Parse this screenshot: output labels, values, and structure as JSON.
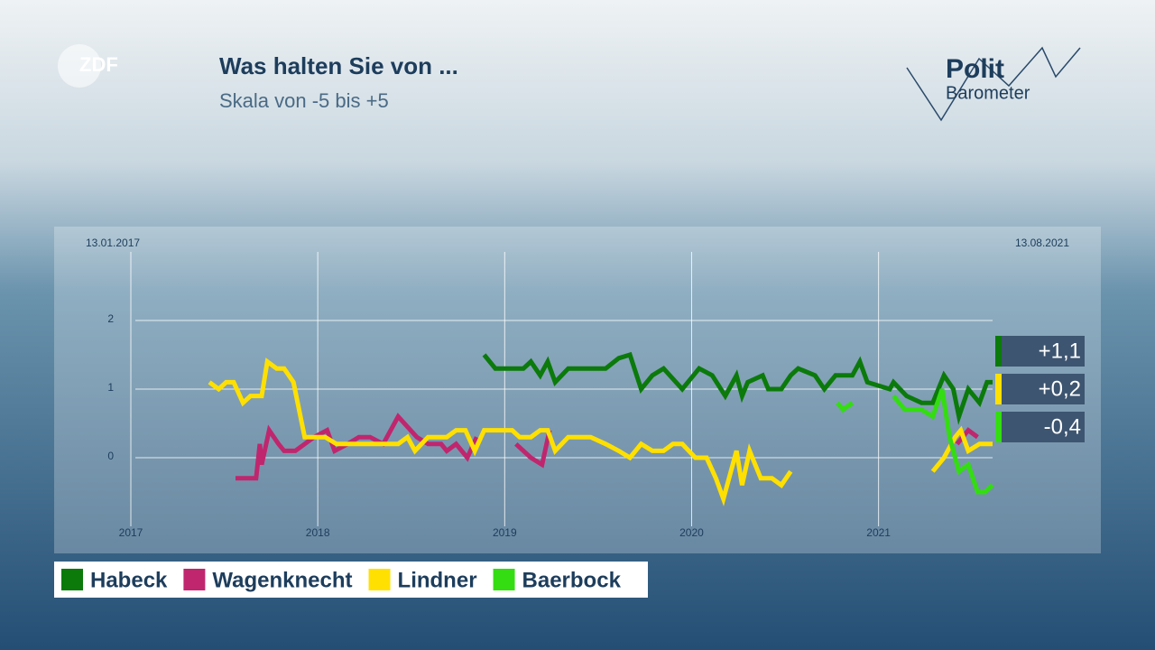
{
  "branding": {
    "broadcaster": "ZDF",
    "logo_top": "Polit",
    "logo_bottom": "Barometer"
  },
  "chart_data": {
    "type": "line",
    "title": "Was halten Sie von ...",
    "subtitle": "Skala von -5 bis +5",
    "start_label": "13.01.2017",
    "end_label": "13.08.2021",
    "xlim": [
      2017,
      2021.61
    ],
    "xticks": [
      2017,
      2018,
      2019,
      2020,
      2021
    ],
    "ylim": [
      -1,
      3
    ],
    "yticks": [
      0,
      1,
      2
    ],
    "grid": true,
    "series": [
      {
        "name": "Habeck",
        "color": "#0b7a0b",
        "x": [
          2018.89,
          2018.95,
          2019.1,
          2019.14,
          2019.19,
          2019.23,
          2019.27,
          2019.34,
          2019.54,
          2019.61,
          2019.67,
          2019.73,
          2019.79,
          2019.85,
          2019.95,
          2020.04,
          2020.11,
          2020.18,
          2020.24,
          2020.27,
          2020.3,
          2020.38,
          2020.41,
          2020.48,
          2020.53,
          2020.57,
          2020.66,
          2020.71,
          2020.77,
          2020.86,
          2020.9,
          2020.94,
          2021.06,
          2021.08,
          2021.15,
          2021.23,
          2021.29,
          2021.35,
          2021.4,
          2021.43,
          2021.48,
          2021.54,
          2021.58,
          2021.61
        ],
        "values": [
          1.5,
          1.3,
          1.3,
          1.4,
          1.2,
          1.4,
          1.1,
          1.3,
          1.3,
          1.45,
          1.5,
          1.0,
          1.2,
          1.3,
          1.0,
          1.3,
          1.2,
          0.9,
          1.2,
          0.9,
          1.1,
          1.2,
          1.0,
          1.0,
          1.2,
          1.3,
          1.2,
          1.0,
          1.2,
          1.2,
          1.4,
          1.1,
          1.0,
          1.1,
          0.9,
          0.8,
          0.8,
          1.2,
          1.0,
          0.6,
          1.0,
          0.8,
          1.1,
          1.1
        ],
        "current": {
          "value": 1.1,
          "label": "+1,1"
        }
      },
      {
        "name": "Wagenknecht",
        "color": "#c0266e",
        "x": [
          2017.56,
          2017.67,
          2017.69,
          2017.7,
          2017.74,
          2017.79,
          2017.82,
          2017.88,
          2017.98,
          2018.05,
          2018.09,
          2018.16,
          2018.22,
          2018.28,
          2018.35,
          2018.43,
          2018.53,
          2018.59,
          2018.66,
          2018.69,
          2018.74,
          2018.8,
          2018.85,
          2018.95,
          2019.06,
          2019.14,
          2019.2,
          2019.24,
          2020.9,
          2021.42,
          2021.48,
          2021.53
        ],
        "values": [
          -0.3,
          -0.3,
          0.2,
          -0.1,
          0.4,
          0.2,
          0.1,
          0.1,
          0.3,
          0.4,
          0.1,
          0.2,
          0.3,
          0.3,
          0.2,
          0.6,
          0.3,
          0.2,
          0.2,
          0.1,
          0.2,
          0.0,
          0.3,
          null,
          0.2,
          0.0,
          -0.1,
          0.4,
          null,
          0.2,
          0.4,
          0.3
        ]
      },
      {
        "name": "Lindner",
        "color": "#ffe000",
        "x": [
          2017.42,
          2017.47,
          2017.51,
          2017.55,
          2017.6,
          2017.64,
          2017.7,
          2017.73,
          2017.78,
          2017.82,
          2017.87,
          2017.93,
          2018.04,
          2018.1,
          2018.43,
          2018.48,
          2018.52,
          2018.59,
          2018.69,
          2018.74,
          2018.79,
          2018.84,
          2018.89,
          2019.04,
          2019.08,
          2019.14,
          2019.19,
          2019.23,
          2019.27,
          2019.34,
          2019.46,
          2019.54,
          2019.61,
          2019.67,
          2019.73,
          2019.79,
          2019.85,
          2019.9,
          2019.95,
          2020.02,
          2020.08,
          2020.13,
          2020.17,
          2020.24,
          2020.27,
          2020.31,
          2020.37,
          2020.43,
          2020.48,
          2020.53,
          2020.9,
          2021.29,
          2021.35,
          2021.41,
          2021.44,
          2021.48,
          2021.54,
          2021.61
        ],
        "values": [
          1.1,
          1.0,
          1.1,
          1.1,
          0.8,
          0.9,
          0.9,
          1.4,
          1.3,
          1.3,
          1.1,
          0.3,
          0.3,
          0.2,
          0.2,
          0.3,
          0.1,
          0.3,
          0.3,
          0.4,
          0.4,
          0.1,
          0.4,
          0.4,
          0.3,
          0.3,
          0.4,
          0.4,
          0.1,
          0.3,
          0.3,
          0.2,
          0.1,
          0.0,
          0.2,
          0.1,
          0.1,
          0.2,
          0.2,
          0.0,
          0.0,
          -0.3,
          -0.6,
          0.1,
          -0.4,
          0.1,
          -0.3,
          -0.3,
          -0.4,
          -0.2,
          null,
          -0.2,
          0.0,
          0.3,
          0.4,
          0.1,
          0.2,
          0.2
        ],
        "current": {
          "value": 0.2,
          "label": "+0,2"
        }
      },
      {
        "name": "Baerbock",
        "color": "#33dd11",
        "x": [
          2020.78,
          2020.81,
          2020.86,
          2020.95,
          2021.08,
          2021.14,
          2021.23,
          2021.29,
          2021.34,
          2021.38,
          2021.43,
          2021.48,
          2021.53,
          2021.57,
          2021.61
        ],
        "values": [
          0.8,
          0.7,
          0.8,
          null,
          0.9,
          0.7,
          0.7,
          0.6,
          1.0,
          0.3,
          -0.2,
          -0.1,
          -0.5,
          -0.5,
          -0.4
        ],
        "current": {
          "value": -0.4,
          "label": "-0,4"
        }
      }
    ]
  }
}
